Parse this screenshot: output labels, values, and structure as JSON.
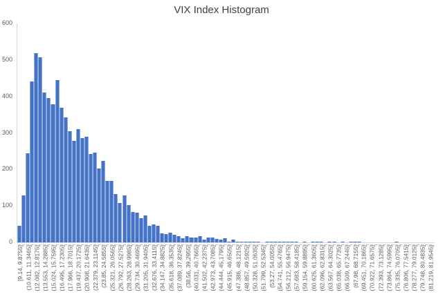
{
  "chart_data": {
    "type": "bar",
    "title": "VIX Index Histogram",
    "xlabel": "",
    "ylabel": "",
    "ylim": [
      0,
      600
    ],
    "yticks": [
      0,
      100,
      200,
      300,
      400,
      500,
      600
    ],
    "grid": false,
    "legend": null,
    "bar_color": "#4472c4",
    "bin_start": 9.14,
    "bin_width": 0.7355,
    "categories_labeled": [
      "[9.14, 9.8755]",
      "(10.611, 11.3465]",
      "(12.082, 12.8175]",
      "(13.553, 14.2885]",
      "(15.024, 15.7595]",
      "(16.495, 17.2305]",
      "(17.966, 18.7015]",
      "(19.437, 20.1725]",
      "(20.908, 21.6435]",
      "(22.379, 23.1145]",
      "(23.85, 24.5855]",
      "(25.321, 26.0565]",
      "(26.792, 27.5275]",
      "(28.263, 28.9985]",
      "(29.734, 30.4695]",
      "(31.205, 31.9405]",
      "(32.676, 33.4115]",
      "(34.147, 34.8825]",
      "(35.618, 36.3535]",
      "(37.089, 37.8245]",
      "(38.56, 39.2955]",
      "(40.031, 40.7665]",
      "(41.502, 42.2375]",
      "(42.973, 43.7085]",
      "(44.444, 45.1795]",
      "(45.915, 46.6505]",
      "(47.386, 48.1215]",
      "(48.857, 49.5925]",
      "(50.328, 51.0635]",
      "(51.799, 52.5345]",
      "(53.27, 54.0055]",
      "(54.741, 55.4765]",
      "(56.212, 56.9475]",
      "(57.683, 58.4185]",
      "(59.154, 59.8895]",
      "(60.625, 61.3605]",
      "(62.096, 62.8315]",
      "(63.567, 64.3025]",
      "(65.038, 65.7735]",
      "(66.509, 67.2445]",
      "(67.98, 68.7155]",
      "(69.451, 70.1865]",
      "(70.922, 71.6575]",
      "(72.393, 73.1285]",
      "(73.864, 74.5995]",
      "(75.335, 76.0705]",
      "(76.806, 77.5415]",
      "(78.277, 79.0125]",
      "(79.748, 80.4835]",
      "(81.219, 81.9545]"
    ],
    "values": [
      46,
      128,
      245,
      441,
      518,
      508,
      410,
      396,
      379,
      444,
      369,
      342,
      305,
      278,
      311,
      285,
      290,
      242,
      246,
      202,
      223,
      169,
      168,
      132,
      107,
      128,
      102,
      83,
      81,
      66,
      74,
      45,
      49,
      46,
      24,
      23,
      27,
      21,
      18,
      11,
      18,
      13,
      13,
      18,
      8,
      14,
      14,
      9,
      8,
      12,
      1,
      8,
      1,
      1,
      1,
      1,
      1,
      1,
      0,
      1,
      2,
      2,
      1,
      1,
      2,
      1,
      1,
      0,
      1,
      0,
      1,
      1,
      1,
      0,
      1,
      2,
      0,
      1,
      0,
      1,
      1,
      1,
      0,
      0,
      0,
      0,
      0,
      0,
      0,
      0,
      1,
      0,
      0,
      0,
      0,
      0,
      0,
      0,
      0
    ]
  }
}
